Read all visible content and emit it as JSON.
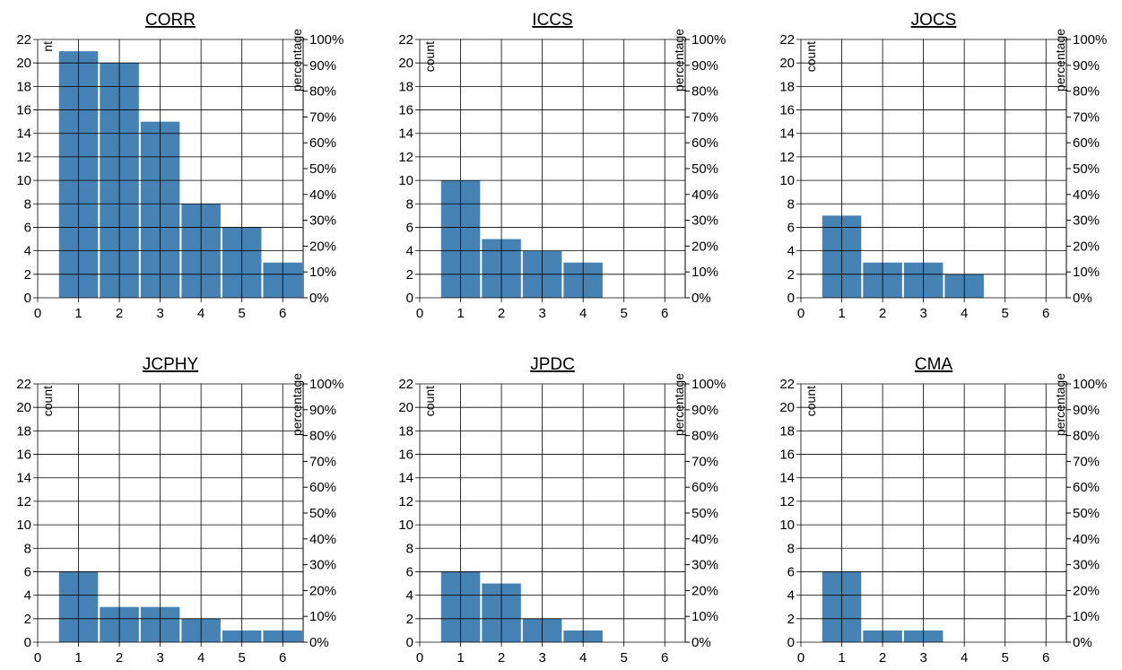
{
  "colors": {
    "bar": "#4682b4",
    "grid": "#000000",
    "background": "#ffffff"
  },
  "chart_data": [
    {
      "type": "bar",
      "title": "CORR",
      "x": [
        1,
        2,
        3,
        4,
        5,
        6
      ],
      "values": [
        21,
        20,
        15,
        8,
        6,
        3
      ],
      "xticks": [
        "0",
        "1",
        "2",
        "3",
        "4",
        "5",
        "6"
      ],
      "yticks": [
        "0",
        "2",
        "4",
        "6",
        "8",
        "10",
        "12",
        "14",
        "16",
        "18",
        "20",
        "22"
      ],
      "y2ticks": [
        "0%",
        "10%",
        "20%",
        "30%",
        "40%",
        "50%",
        "60%",
        "70%",
        "80%",
        "90%",
        "100%"
      ],
      "ylabel": "nt",
      "y2label": "percentage",
      "xlim": [
        0,
        6.5
      ],
      "ylim": [
        0,
        22
      ],
      "y2lim": [
        0,
        1
      ],
      "grid": true
    },
    {
      "type": "bar",
      "title": "ICCS",
      "x": [
        1,
        2,
        3,
        4
      ],
      "values": [
        10,
        5,
        4,
        3
      ],
      "xticks": [
        "0",
        "1",
        "2",
        "3",
        "4",
        "5",
        "6"
      ],
      "yticks": [
        "0",
        "2",
        "4",
        "6",
        "8",
        "10",
        "12",
        "14",
        "16",
        "18",
        "20",
        "22"
      ],
      "y2ticks": [
        "0%",
        "10%",
        "20%",
        "30%",
        "40%",
        "50%",
        "60%",
        "70%",
        "80%",
        "90%",
        "100%"
      ],
      "ylabel": "count",
      "y2label": "percentage",
      "xlim": [
        0,
        6.5
      ],
      "ylim": [
        0,
        22
      ],
      "y2lim": [
        0,
        1
      ],
      "grid": true
    },
    {
      "type": "bar",
      "title": "JOCS",
      "x": [
        1,
        2,
        3,
        4
      ],
      "values": [
        7,
        3,
        3,
        2
      ],
      "xticks": [
        "0",
        "1",
        "2",
        "3",
        "4",
        "5",
        "6"
      ],
      "yticks": [
        "0",
        "2",
        "4",
        "6",
        "8",
        "10",
        "12",
        "14",
        "16",
        "18",
        "20",
        "22"
      ],
      "y2ticks": [
        "0%",
        "10%",
        "20%",
        "30%",
        "40%",
        "50%",
        "60%",
        "70%",
        "80%",
        "90%",
        "100%"
      ],
      "ylabel": "count",
      "y2label": "percentage",
      "xlim": [
        0,
        6.5
      ],
      "ylim": [
        0,
        22
      ],
      "y2lim": [
        0,
        1
      ],
      "grid": true
    },
    {
      "type": "bar",
      "title": "JCPHY",
      "x": [
        1,
        2,
        3,
        4,
        5,
        6
      ],
      "values": [
        6,
        3,
        3,
        2,
        1,
        1
      ],
      "xticks": [
        "0",
        "1",
        "2",
        "3",
        "4",
        "5",
        "6"
      ],
      "yticks": [
        "0",
        "2",
        "4",
        "6",
        "8",
        "10",
        "12",
        "14",
        "16",
        "18",
        "20",
        "22"
      ],
      "y2ticks": [
        "0%",
        "10%",
        "20%",
        "30%",
        "40%",
        "50%",
        "60%",
        "70%",
        "80%",
        "90%",
        "100%"
      ],
      "ylabel": "count",
      "y2label": "percentage",
      "xlim": [
        0,
        6.5
      ],
      "ylim": [
        0,
        22
      ],
      "y2lim": [
        0,
        1
      ],
      "grid": true
    },
    {
      "type": "bar",
      "title": "JPDC",
      "x": [
        1,
        2,
        3,
        4
      ],
      "values": [
        6,
        5,
        2,
        1
      ],
      "xticks": [
        "0",
        "1",
        "2",
        "3",
        "4",
        "5",
        "6"
      ],
      "yticks": [
        "0",
        "2",
        "4",
        "6",
        "8",
        "10",
        "12",
        "14",
        "16",
        "18",
        "20",
        "22"
      ],
      "y2ticks": [
        "0%",
        "10%",
        "20%",
        "30%",
        "40%",
        "50%",
        "60%",
        "70%",
        "80%",
        "90%",
        "100%"
      ],
      "ylabel": "count",
      "y2label": "percentage",
      "xlim": [
        0,
        6.5
      ],
      "ylim": [
        0,
        22
      ],
      "y2lim": [
        0,
        1
      ],
      "grid": true
    },
    {
      "type": "bar",
      "title": "CMA",
      "x": [
        1,
        2,
        3
      ],
      "values": [
        6,
        1,
        1
      ],
      "xticks": [
        "0",
        "1",
        "2",
        "3",
        "4",
        "5",
        "6"
      ],
      "yticks": [
        "0",
        "2",
        "4",
        "6",
        "8",
        "10",
        "12",
        "14",
        "16",
        "18",
        "20",
        "22"
      ],
      "y2ticks": [
        "0%",
        "10%",
        "20%",
        "30%",
        "40%",
        "50%",
        "60%",
        "70%",
        "80%",
        "90%",
        "100%"
      ],
      "ylabel": "count",
      "y2label": "percentage",
      "xlim": [
        0,
        6.5
      ],
      "ylim": [
        0,
        22
      ],
      "y2lim": [
        0,
        1
      ],
      "grid": true
    }
  ]
}
